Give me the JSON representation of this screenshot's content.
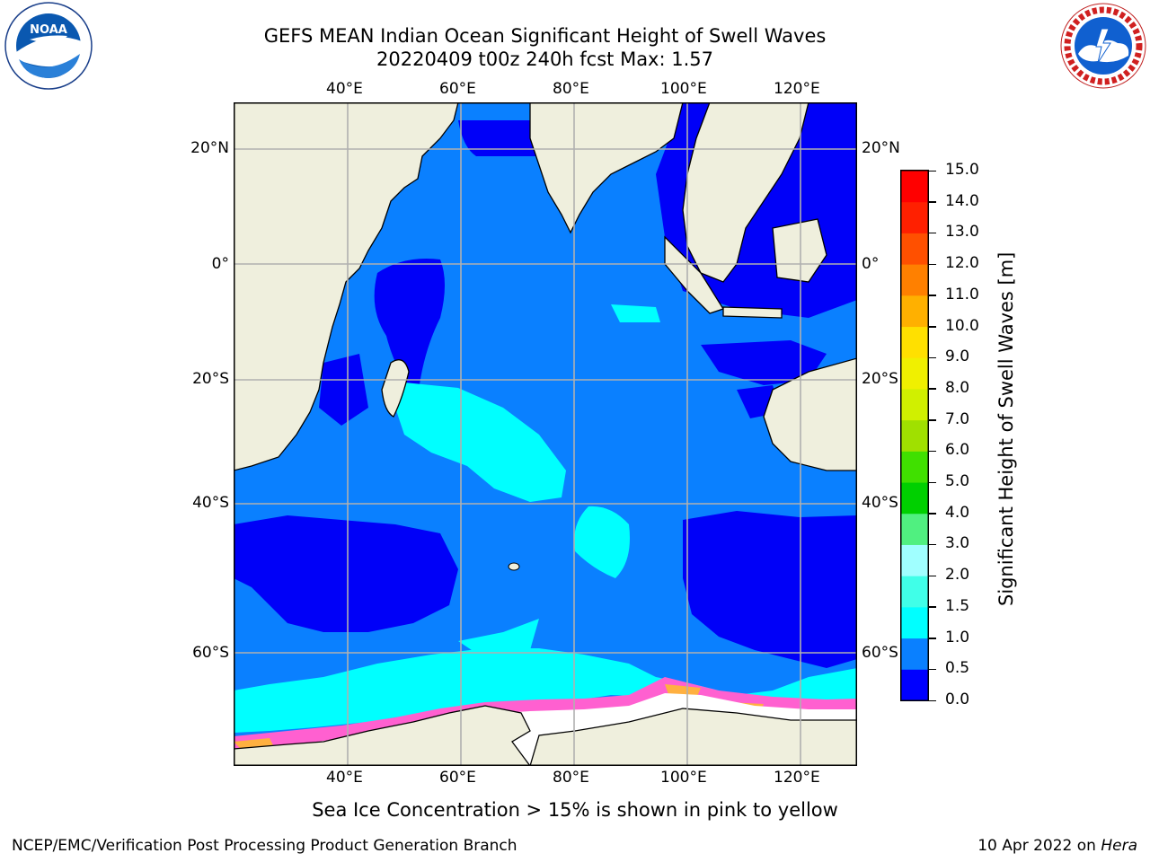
{
  "header": {
    "title_line1": "GEFS MEAN Indian Ocean Significant Height of Swell Waves",
    "title_line2": "20220409 t00z 240h fcst   Max: 1.57"
  },
  "map": {
    "lon_ticks": [
      "40°E",
      "60°E",
      "80°E",
      "100°E",
      "120°E"
    ],
    "lat_ticks": [
      "20°N",
      "0°",
      "20°S",
      "40°S",
      "60°S"
    ],
    "colors": {
      "land": "#efefdd",
      "ocean_low": "#0000f8",
      "ocean_mid": "#0a80ff",
      "ocean_high": "#00ffff",
      "ice_white": "#ffffff",
      "ice_pink": "#ff60d0",
      "ice_orange": "#ffb040",
      "grid": "#b0b0b0"
    }
  },
  "colorbar": {
    "label": "Significant Height of Swell Waves [m]",
    "ticks": [
      "0.0",
      "0.5",
      "1.0",
      "1.5",
      "2.0",
      "3.0",
      "4.0",
      "5.0",
      "6.0",
      "7.0",
      "8.0",
      "9.0",
      "10.0",
      "11.0",
      "12.0",
      "13.0",
      "14.0",
      "15.0"
    ],
    "colors": [
      "#0000ff",
      "#0a80ff",
      "#00ffff",
      "#40ffe8",
      "#a0ffff",
      "#50f080",
      "#00d000",
      "#40e000",
      "#a0e000",
      "#d0f000",
      "#f0f000",
      "#ffe000",
      "#ffb000",
      "#ff8000",
      "#ff5000",
      "#ff2000",
      "#ff0000"
    ]
  },
  "logos": {
    "left": "noa-logo",
    "right": "nws-logo"
  },
  "footer": {
    "note": "Sea Ice Concentration > 15% is shown in pink to yellow",
    "producer": "NCEP/EMC/Verification Post Processing Product Generation Branch",
    "date": "10 Apr 2022 on ",
    "host": "Hera"
  }
}
